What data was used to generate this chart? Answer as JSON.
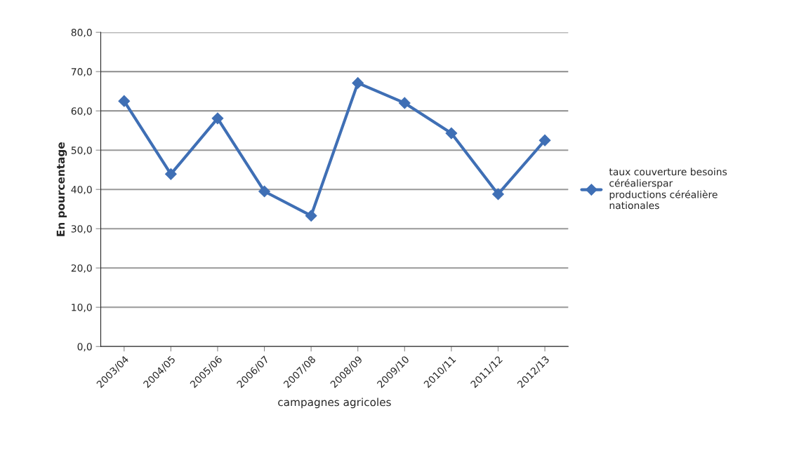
{
  "chart_data": {
    "type": "line",
    "xlabel": "campagnes agricoles",
    "ylabel": "En pourcentage",
    "categories": [
      "2003/04",
      "2004/05",
      "2005/06",
      "2006/07",
      "2007/08",
      "2008/09",
      "2009/10",
      "2010/11",
      "2011/12",
      "2012/13"
    ],
    "series": [
      {
        "name": "taux couverture besoins céréalierspar productions céréalière nationales",
        "color": "#3f6fb5",
        "values": [
          62.5,
          43.9,
          58.1,
          39.5,
          33.3,
          67.1,
          62.0,
          54.3,
          38.8,
          52.5
        ]
      }
    ],
    "ylim": [
      0,
      80
    ],
    "yticks": [
      {
        "value": 0,
        "label": "0,0"
      },
      {
        "value": 10,
        "label": "10,0"
      },
      {
        "value": 20,
        "label": "20,0"
      },
      {
        "value": 30,
        "label": "30,0"
      },
      {
        "value": 40,
        "label": "40,0"
      },
      {
        "value": 50,
        "label": "50,0"
      },
      {
        "value": 60,
        "label": "60,0"
      },
      {
        "value": 70,
        "label": "70,0"
      },
      {
        "value": 80,
        "label": "80,0"
      }
    ],
    "grid": "y",
    "legend": "right",
    "marker": "diamond",
    "line_style": "solid"
  }
}
